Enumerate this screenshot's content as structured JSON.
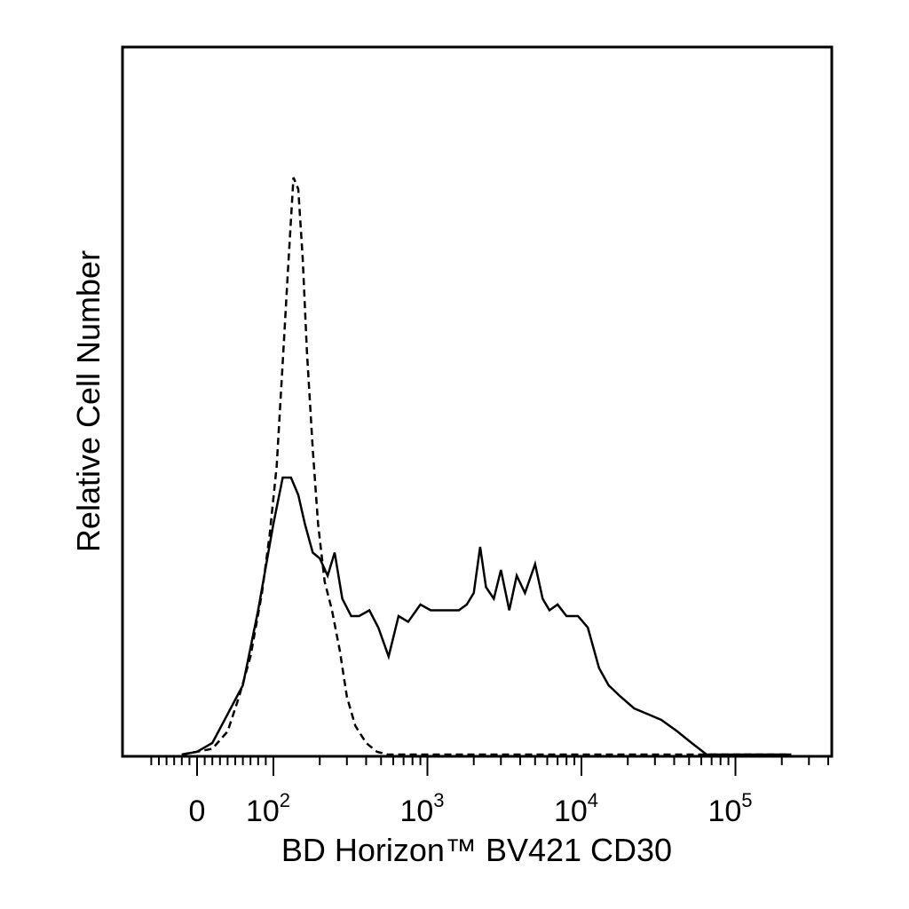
{
  "chart_data": {
    "type": "line",
    "xlabel": "BD Horizon™ BV421 CD30",
    "ylabel": "Relative Cell Number",
    "x_scale": "biexponential",
    "x_tick_labels": [
      {
        "value": 0,
        "base": "0",
        "exp": ""
      },
      {
        "value": 100,
        "base": "10",
        "exp": "2"
      },
      {
        "value": 1000,
        "base": "10",
        "exp": "3"
      },
      {
        "value": 10000,
        "base": "10",
        "exp": "4"
      },
      {
        "value": 100000,
        "base": "10",
        "exp": "5"
      }
    ],
    "xlim": [
      -60,
      250000
    ],
    "ylim": [
      0,
      100
    ],
    "grid": false,
    "legend": "none",
    "series": [
      {
        "style": "dashed",
        "color": "#000000",
        "x": [
          -20,
          0,
          20,
          40,
          55,
          70,
          85,
          95,
          105,
          115,
          125,
          135,
          145,
          155,
          165,
          180,
          195,
          215,
          240,
          270,
          300,
          340,
          400,
          470,
          550,
          700,
          1000,
          2000,
          5000,
          10000,
          30000,
          100000,
          230000
        ],
        "y": [
          0,
          0.5,
          1,
          4,
          10,
          17,
          28,
          38,
          50,
          68,
          85,
          100,
          98,
          86,
          70,
          53,
          40,
          30,
          25,
          18,
          10,
          5,
          2,
          0.5,
          0,
          0,
          0,
          0,
          0,
          0,
          0,
          0,
          0
        ]
      },
      {
        "style": "solid",
        "color": "#000000",
        "x": [
          -20,
          0,
          20,
          40,
          60,
          80,
          100,
          115,
          130,
          145,
          160,
          180,
          200,
          225,
          250,
          280,
          320,
          360,
          420,
          480,
          560,
          650,
          750,
          900,
          1050,
          1200,
          1400,
          1600,
          1800,
          2000,
          2200,
          2400,
          2700,
          3000,
          3400,
          3800,
          4300,
          5000,
          5600,
          6200,
          7000,
          8000,
          9500,
          11000,
          13000,
          15000,
          18000,
          22000,
          27000,
          33000,
          42000,
          52000,
          65000,
          230000
        ],
        "y": [
          0,
          0.5,
          2,
          7,
          12,
          25,
          40,
          48,
          48,
          45,
          40,
          35,
          34,
          31,
          35,
          27,
          24,
          24,
          25,
          22,
          17,
          24,
          23,
          26,
          25,
          25,
          25,
          25,
          26,
          28,
          36,
          29,
          27,
          32,
          25,
          31,
          28,
          33,
          27,
          25,
          26,
          24,
          24,
          22,
          15,
          12,
          10,
          8,
          7,
          6,
          4,
          2,
          0,
          0
        ]
      }
    ]
  }
}
